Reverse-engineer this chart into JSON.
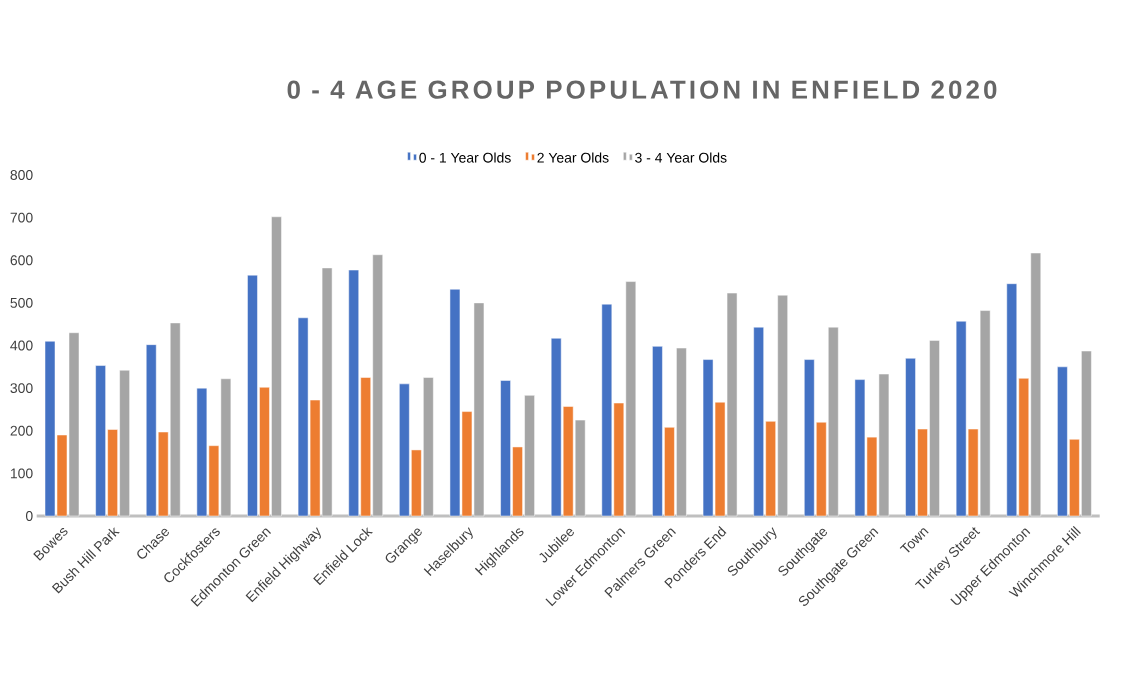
{
  "chart_data": {
    "type": "bar",
    "title": "0 - 4 AGE GROUP POPULATION IN ENFIELD 2020",
    "categories": [
      "Bowes",
      "Bush Hill Park",
      "Chase",
      "Cockfosters",
      "Edmonton Green",
      "Enfield Highway",
      "Enfield Lock",
      "Grange",
      "Haselbury",
      "Highlands",
      "Jubilee",
      "Lower Edmonton",
      "Palmers Green",
      "Ponders End",
      "Southbury",
      "Southgate",
      "Southgate Green",
      "Town",
      "Turkey Street",
      "Upper Edmonton",
      "Winchmore Hill"
    ],
    "series": [
      {
        "name": "0 - 1 Year Olds",
        "color": "#4472c4",
        "values": [
          410,
          353,
          402,
          300,
          565,
          465,
          577,
          310,
          532,
          318,
          417,
          497,
          398,
          367,
          443,
          367,
          320,
          370,
          457,
          545,
          350
        ]
      },
      {
        "name": "2 Year Olds",
        "color": "#ed7d31",
        "values": [
          190,
          203,
          197,
          165,
          302,
          272,
          325,
          155,
          245,
          162,
          257,
          265,
          208,
          267,
          222,
          220,
          185,
          204,
          204,
          323,
          180
        ]
      },
      {
        "name": "3 - 4 Year Olds",
        "color": "#a5a5a5",
        "values": [
          430,
          342,
          453,
          322,
          702,
          582,
          613,
          325,
          500,
          283,
          225,
          550,
          394,
          523,
          518,
          443,
          333,
          412,
          482,
          617,
          387
        ]
      }
    ],
    "ylim": [
      0,
      800
    ],
    "yticks": [
      0,
      100,
      200,
      300,
      400,
      500,
      600,
      700,
      800
    ],
    "legend": "top"
  }
}
